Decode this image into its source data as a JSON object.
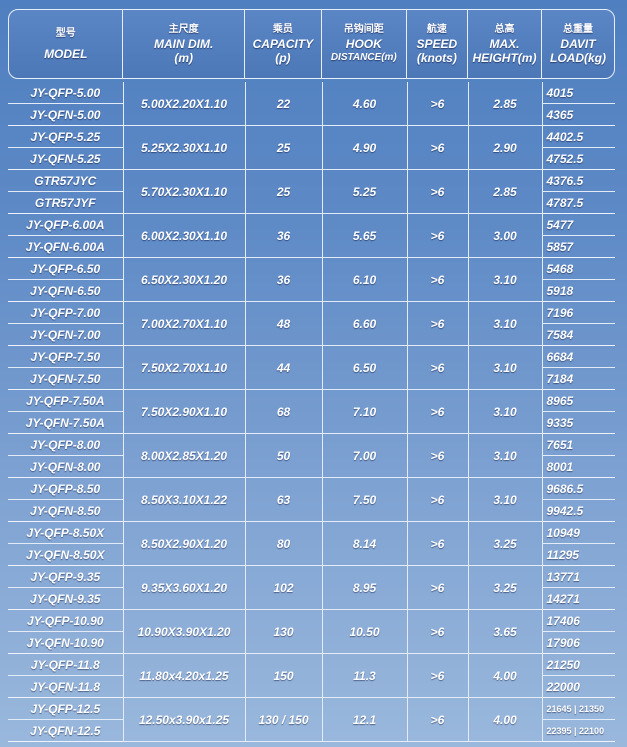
{
  "headers": [
    {
      "cn": "型号",
      "en1": "MODEL",
      "en2": ""
    },
    {
      "cn": "主尺度",
      "en1": "MAIN DIM.",
      "en2": "(m)"
    },
    {
      "cn": "乘员",
      "en1": "CAPACITY",
      "en2": "(p)"
    },
    {
      "cn": "吊钩间距",
      "en1": "HOOK",
      "en2": "DISTANCE(m)"
    },
    {
      "cn": "航速",
      "en1": "SPEED",
      "en2": "(knots)"
    },
    {
      "cn": "总高",
      "en1": "MAX.",
      "en2": "HEIGHT(m)"
    },
    {
      "cn": "总重量",
      "en1": "DAVIT",
      "en2": "LOAD(kg)"
    }
  ],
  "rows": [
    {
      "models": [
        "JY-QFP-5.00",
        "JY-QFN-5.00"
      ],
      "dim": "5.00X2.20X1.10",
      "capacity": "22",
      "hook": "4.60",
      "speed": ">6",
      "height": "2.85",
      "load": [
        "4015",
        "4365"
      ]
    },
    {
      "models": [
        "JY-QFP-5.25",
        "JY-QFN-5.25"
      ],
      "dim": "5.25X2.30X1.10",
      "capacity": "25",
      "hook": "4.90",
      "speed": ">6",
      "height": "2.90",
      "load": [
        "4402.5",
        "4752.5"
      ]
    },
    {
      "models": [
        "GTR57JYC",
        "GTR57JYF"
      ],
      "dim": "5.70X2.30X1.10",
      "capacity": "25",
      "hook": "5.25",
      "speed": ">6",
      "height": "2.85",
      "load": [
        "4376.5",
        "4787.5"
      ]
    },
    {
      "models": [
        "JY-QFP-6.00A",
        "JY-QFN-6.00A"
      ],
      "dim": "6.00X2.30X1.10",
      "capacity": "36",
      "hook": "5.65",
      "speed": ">6",
      "height": "3.00",
      "load": [
        "5477",
        "5857"
      ]
    },
    {
      "models": [
        "JY-QFP-6.50",
        "JY-QFN-6.50"
      ],
      "dim": "6.50X2.30X1.20",
      "capacity": "36",
      "hook": "6.10",
      "speed": ">6",
      "height": "3.10",
      "load": [
        "5468",
        "5918"
      ]
    },
    {
      "models": [
        "JY-QFP-7.00",
        "JY-QFN-7.00"
      ],
      "dim": "7.00X2.70X1.10",
      "capacity": "48",
      "hook": "6.60",
      "speed": ">6",
      "height": "3.10",
      "load": [
        "7196",
        "7584"
      ]
    },
    {
      "models": [
        "JY-QFP-7.50",
        "JY-QFN-7.50"
      ],
      "dim": "7.50X2.70X1.10",
      "capacity": "44",
      "hook": "6.50",
      "speed": ">6",
      "height": "3.10",
      "load": [
        "6684",
        "7184"
      ]
    },
    {
      "models": [
        "JY-QFP-7.50A",
        "JY-QFN-7.50A"
      ],
      "dim": "7.50X2.90X1.10",
      "capacity": "68",
      "hook": "7.10",
      "speed": ">6",
      "height": "3.10",
      "load": [
        "8965",
        "9335"
      ]
    },
    {
      "models": [
        "JY-QFP-8.00",
        "JY-QFN-8.00"
      ],
      "dim": "8.00X2.85X1.20",
      "capacity": "50",
      "hook": "7.00",
      "speed": ">6",
      "height": "3.10",
      "load": [
        "7651",
        "8001"
      ]
    },
    {
      "models": [
        "JY-QFP-8.50",
        "JY-QFN-8.50"
      ],
      "dim": "8.50X3.10X1.22",
      "capacity": "63",
      "hook": "7.50",
      "speed": ">6",
      "height": "3.10",
      "load": [
        "9686.5",
        "9942.5"
      ]
    },
    {
      "models": [
        "JY-QFP-8.50X",
        "JY-QFN-8.50X"
      ],
      "dim": "8.50X2.90X1.20",
      "capacity": "80",
      "hook": "8.14",
      "speed": ">6",
      "height": "3.25",
      "load": [
        "10949",
        "11295"
      ]
    },
    {
      "models": [
        "JY-QFP-9.35",
        "JY-QFN-9.35"
      ],
      "dim": "9.35X3.60X1.20",
      "capacity": "102",
      "hook": "8.95",
      "speed": ">6",
      "height": "3.25",
      "load": [
        "13771",
        "14271"
      ]
    },
    {
      "models": [
        "JY-QFP-10.90",
        "JY-QFN-10.90"
      ],
      "dim": "10.90X3.90X1.20",
      "capacity": "130",
      "hook": "10.50",
      "speed": ">6",
      "height": "3.65",
      "load": [
        "17406",
        "17906"
      ]
    },
    {
      "models": [
        "JY-QFP-11.8",
        "JY-QFN-11.8"
      ],
      "dim": "11.80x4.20x1.25",
      "capacity": "150",
      "hook": "11.3",
      "speed": ">6",
      "height": "4.00",
      "load": [
        "21250",
        "22000"
      ]
    },
    {
      "models": [
        "JY-QFP-12.5",
        "JY-QFN-12.5"
      ],
      "dim": "12.50x3.90x1.25",
      "capacity": "130 / 150",
      "hook": "12.1",
      "speed": ">6",
      "height": "4.00",
      "load": [
        "21645 | 21350",
        "22395 | 22100"
      ]
    }
  ]
}
